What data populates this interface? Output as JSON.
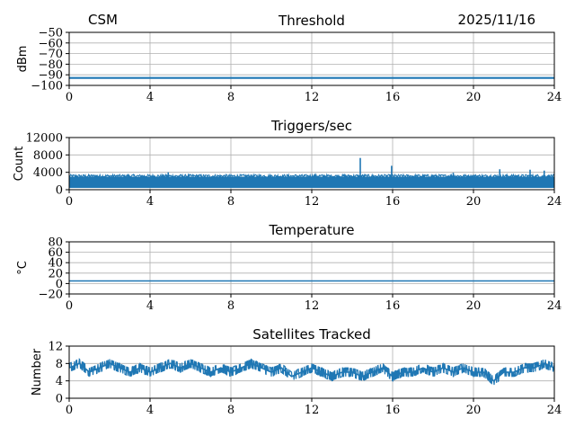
{
  "header": {
    "left": "CSM",
    "right": "2025/11/16"
  },
  "colors": {
    "series": "#1f77b4",
    "grid": "#b0b0b0",
    "axis": "#000000"
  },
  "chart_data": [
    {
      "type": "line",
      "title": "Threshold",
      "ylabel": "dBm",
      "xlim": [
        0,
        24
      ],
      "x_ticks": [
        0,
        4,
        8,
        12,
        16,
        20,
        24
      ],
      "ylim": [
        -100,
        -50
      ],
      "y_ticks": [
        -100,
        -90,
        -80,
        -70,
        -60,
        -50
      ],
      "y_tick_labels": [
        "−100",
        "−90",
        "−80",
        "−70",
        "−60",
        "−50"
      ],
      "grid": true,
      "series": [
        {
          "x": [
            0,
            24
          ],
          "values": [
            -93,
            -93
          ]
        }
      ]
    },
    {
      "type": "line",
      "title": "Triggers/sec",
      "ylabel": "Count",
      "xlim": [
        0,
        24
      ],
      "x_ticks": [
        0,
        4,
        8,
        12,
        16,
        20,
        24
      ],
      "ylim": [
        0,
        12000
      ],
      "y_ticks": [
        0,
        4000,
        8000,
        12000
      ],
      "y_tick_labels": [
        "0",
        "4000",
        "8000",
        "12000"
      ],
      "grid": true,
      "baseline_band": [
        400,
        3000
      ],
      "spikes": [
        {
          "x": 4.9,
          "value": 4000
        },
        {
          "x": 14.4,
          "value": 7300
        },
        {
          "x": 15.95,
          "value": 5500
        },
        {
          "x": 19.0,
          "value": 3900
        },
        {
          "x": 21.3,
          "value": 4700
        },
        {
          "x": 22.8,
          "value": 4600
        },
        {
          "x": 23.5,
          "value": 4400
        }
      ]
    },
    {
      "type": "line",
      "title": "Temperature",
      "ylabel": "°C",
      "xlim": [
        0,
        24
      ],
      "x_ticks": [
        0,
        4,
        8,
        12,
        16,
        20,
        24
      ],
      "ylim": [
        -20,
        80
      ],
      "y_ticks": [
        -20,
        0,
        20,
        40,
        60,
        80
      ],
      "y_tick_labels": [
        "−20",
        "0",
        "20",
        "40",
        "60",
        "80"
      ],
      "grid": true,
      "series": [
        {
          "x": [
            0,
            24
          ],
          "values": [
            5,
            5
          ]
        }
      ]
    },
    {
      "type": "line",
      "title": "Satellites Tracked",
      "ylabel": "Number",
      "xlim": [
        0,
        24
      ],
      "x_ticks": [
        0,
        4,
        8,
        12,
        16,
        20,
        24
      ],
      "ylim": [
        0,
        12
      ],
      "y_ticks": [
        0,
        4,
        8,
        12
      ],
      "y_tick_labels": [
        "0",
        "4",
        "8",
        "12"
      ],
      "grid": true,
      "series": [
        {
          "x": [
            0,
            0.5,
            1,
            1.5,
            2,
            2.5,
            3,
            3.5,
            4,
            4.5,
            5,
            5.5,
            6,
            6.5,
            7,
            7.5,
            8,
            8.5,
            9,
            9.5,
            10,
            10.5,
            11,
            11.5,
            12,
            12.5,
            13,
            13.5,
            14,
            14.5,
            15,
            15.5,
            16,
            16.5,
            17,
            17.5,
            18,
            18.5,
            19,
            19.5,
            20,
            20.5,
            21,
            21.5,
            22,
            22.5,
            23,
            23.5,
            24
          ],
          "values": [
            7,
            8,
            6,
            7,
            8,
            7,
            6,
            7,
            6,
            7,
            8,
            7,
            8,
            7,
            6,
            7,
            6,
            7,
            8,
            7,
            6,
            7,
            5,
            6,
            7,
            6,
            5,
            6,
            6,
            5,
            6,
            7,
            5,
            6,
            6,
            7,
            6,
            7,
            6,
            7,
            6,
            6,
            4,
            6,
            6,
            7,
            7,
            8,
            7
          ]
        }
      ]
    }
  ]
}
